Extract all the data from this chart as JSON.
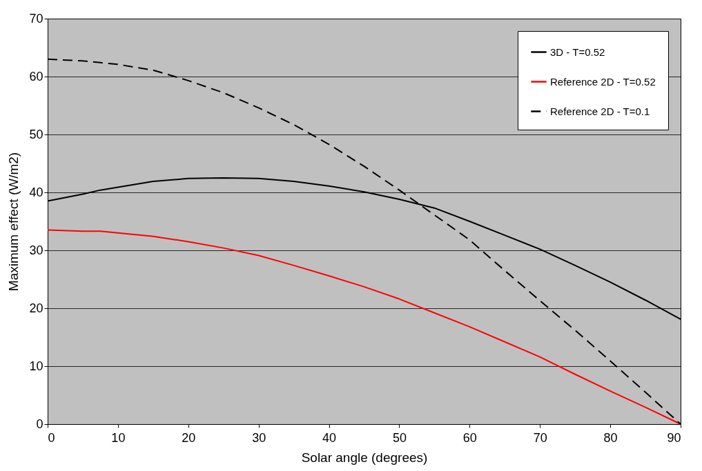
{
  "chart_data": {
    "type": "line",
    "xlabel": "Solar angle (degrees)",
    "ylabel": "Maximum effect (W/m2)",
    "xlim": [
      0,
      90
    ],
    "xticks": [
      0,
      10,
      20,
      30,
      40,
      50,
      60,
      70,
      80,
      90
    ],
    "ylim": [
      0,
      70
    ],
    "yticks": [
      0,
      10,
      20,
      30,
      40,
      50,
      60,
      70
    ],
    "grid": "y",
    "legend": "top right",
    "marker": "none",
    "x": [
      0,
      5,
      7.5,
      10,
      15,
      20,
      25,
      30,
      35,
      40,
      45,
      50,
      55,
      60,
      65,
      70,
      75,
      80,
      85,
      90
    ],
    "series": [
      {
        "name": "3D - T=0.52",
        "color": "#000000",
        "line_style": "solid",
        "values": [
          38.5,
          39.7,
          40.4,
          40.9,
          41.9,
          42.4,
          42.5,
          42.4,
          41.9,
          41.1,
          40.1,
          38.8,
          37.3,
          35,
          32.6,
          30.2,
          27.4,
          24.5,
          21.4,
          18.1
        ]
      },
      {
        "name": "Reference 2D - T=0.52",
        "color": "#ff0000",
        "line_style": "solid",
        "values": [
          33.5,
          33.3,
          33.3,
          33.0,
          32.4,
          31.5,
          30.4,
          29.1,
          27.4,
          25.6,
          23.7,
          21.6,
          19.2,
          16.8,
          14.2,
          11.6,
          8.6,
          5.7,
          2.9,
          0
        ]
      },
      {
        "name": "Reference 2D - T=0.1",
        "color": "#000000",
        "line_style": "dashed",
        "values": [
          63,
          62.7,
          62.4,
          62.1,
          61.1,
          59.3,
          57.2,
          54.6,
          51.7,
          48.3,
          44.5,
          40.4,
          36.1,
          31.8,
          26.5,
          21.3,
          16.2,
          10.9,
          5.5,
          0
        ]
      }
    ]
  }
}
